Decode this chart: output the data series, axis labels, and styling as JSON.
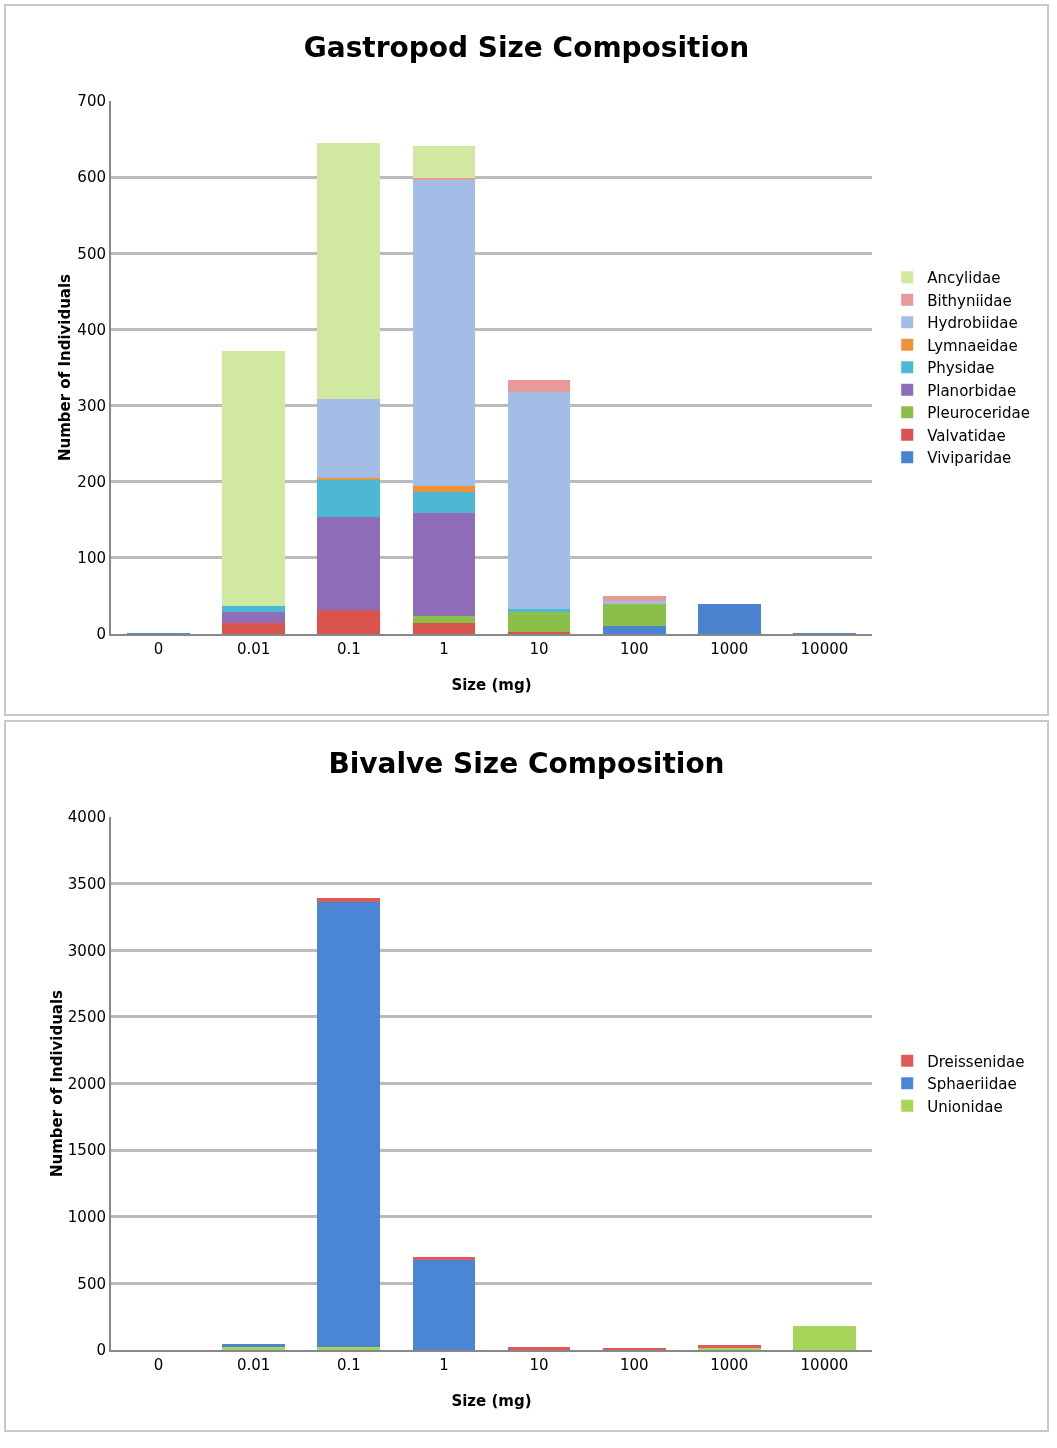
{
  "chart_data": [
    {
      "type": "bar",
      "title": "Gastropod Size Composition",
      "xlabel": "Size (mg)",
      "ylabel": "Number of Individuals",
      "categories": [
        "0",
        "0.01",
        "0.1",
        "1",
        "10",
        "100",
        "1000",
        "10000"
      ],
      "stacked": true,
      "ylim": [
        0,
        700
      ],
      "yticks": [
        0,
        100,
        200,
        300,
        400,
        500,
        600,
        700
      ],
      "grid": "y",
      "legend": "right",
      "series": [
        {
          "name": "Viviparidae",
          "color": "#4a84d0",
          "values": [
            1,
            null,
            null,
            null,
            null,
            11,
            39,
            1
          ]
        },
        {
          "name": "Valvatidae",
          "color": "#d9534f",
          "values": [
            null,
            15,
            31,
            15,
            3,
            null,
            null,
            null
          ]
        },
        {
          "name": "Pleuroceridae",
          "color": "#8cbf4a",
          "values": [
            null,
            null,
            null,
            8,
            26,
            29,
            null,
            null
          ]
        },
        {
          "name": "Planorbidae",
          "color": "#8f6db8",
          "values": [
            null,
            14,
            123,
            136,
            null,
            null,
            null,
            null
          ]
        },
        {
          "name": "Physidae",
          "color": "#4cb8d4",
          "values": [
            null,
            8,
            48,
            28,
            4,
            null,
            null,
            null
          ]
        },
        {
          "name": "Lymnaeidae",
          "color": "#f0923a",
          "values": [
            null,
            null,
            3,
            8,
            null,
            null,
            null,
            null
          ]
        },
        {
          "name": "Hydrobiidae",
          "color": "#a3bde6",
          "values": [
            null,
            null,
            104,
            401,
            285,
            4,
            null,
            null
          ]
        },
        {
          "name": "Bithyniidae",
          "color": "#e89a9a",
          "values": [
            null,
            null,
            null,
            3,
            15,
            6,
            null,
            null
          ]
        },
        {
          "name": "Ancylidae",
          "color": "#d0e8a0",
          "values": [
            null,
            335,
            336,
            42,
            null,
            null,
            null,
            null
          ]
        }
      ]
    },
    {
      "type": "bar",
      "title": "Bivalve Size Composition",
      "xlabel": "Size (mg)",
      "ylabel": "Number of Individuals",
      "categories": [
        "0",
        "0.01",
        "0.1",
        "1",
        "10",
        "100",
        "1000",
        "10000"
      ],
      "stacked": true,
      "ylim": [
        0,
        4000
      ],
      "yticks": [
        0,
        500,
        1000,
        1500,
        2000,
        2500,
        3000,
        3500,
        4000
      ],
      "grid": "y",
      "legend": "right",
      "series": [
        {
          "name": "Unionidae",
          "color": "#a8d45a",
          "values": [
            null,
            20,
            20,
            null,
            null,
            null,
            15,
            180
          ]
        },
        {
          "name": "Sphaeriidae",
          "color": "#4a86d4",
          "values": [
            null,
            25,
            3339,
            676,
            null,
            null,
            null,
            null
          ]
        },
        {
          "name": "Dreissenidae",
          "color": "#e05a5a",
          "values": [
            null,
            null,
            30,
            20,
            23,
            15,
            20,
            null
          ]
        }
      ]
    }
  ]
}
